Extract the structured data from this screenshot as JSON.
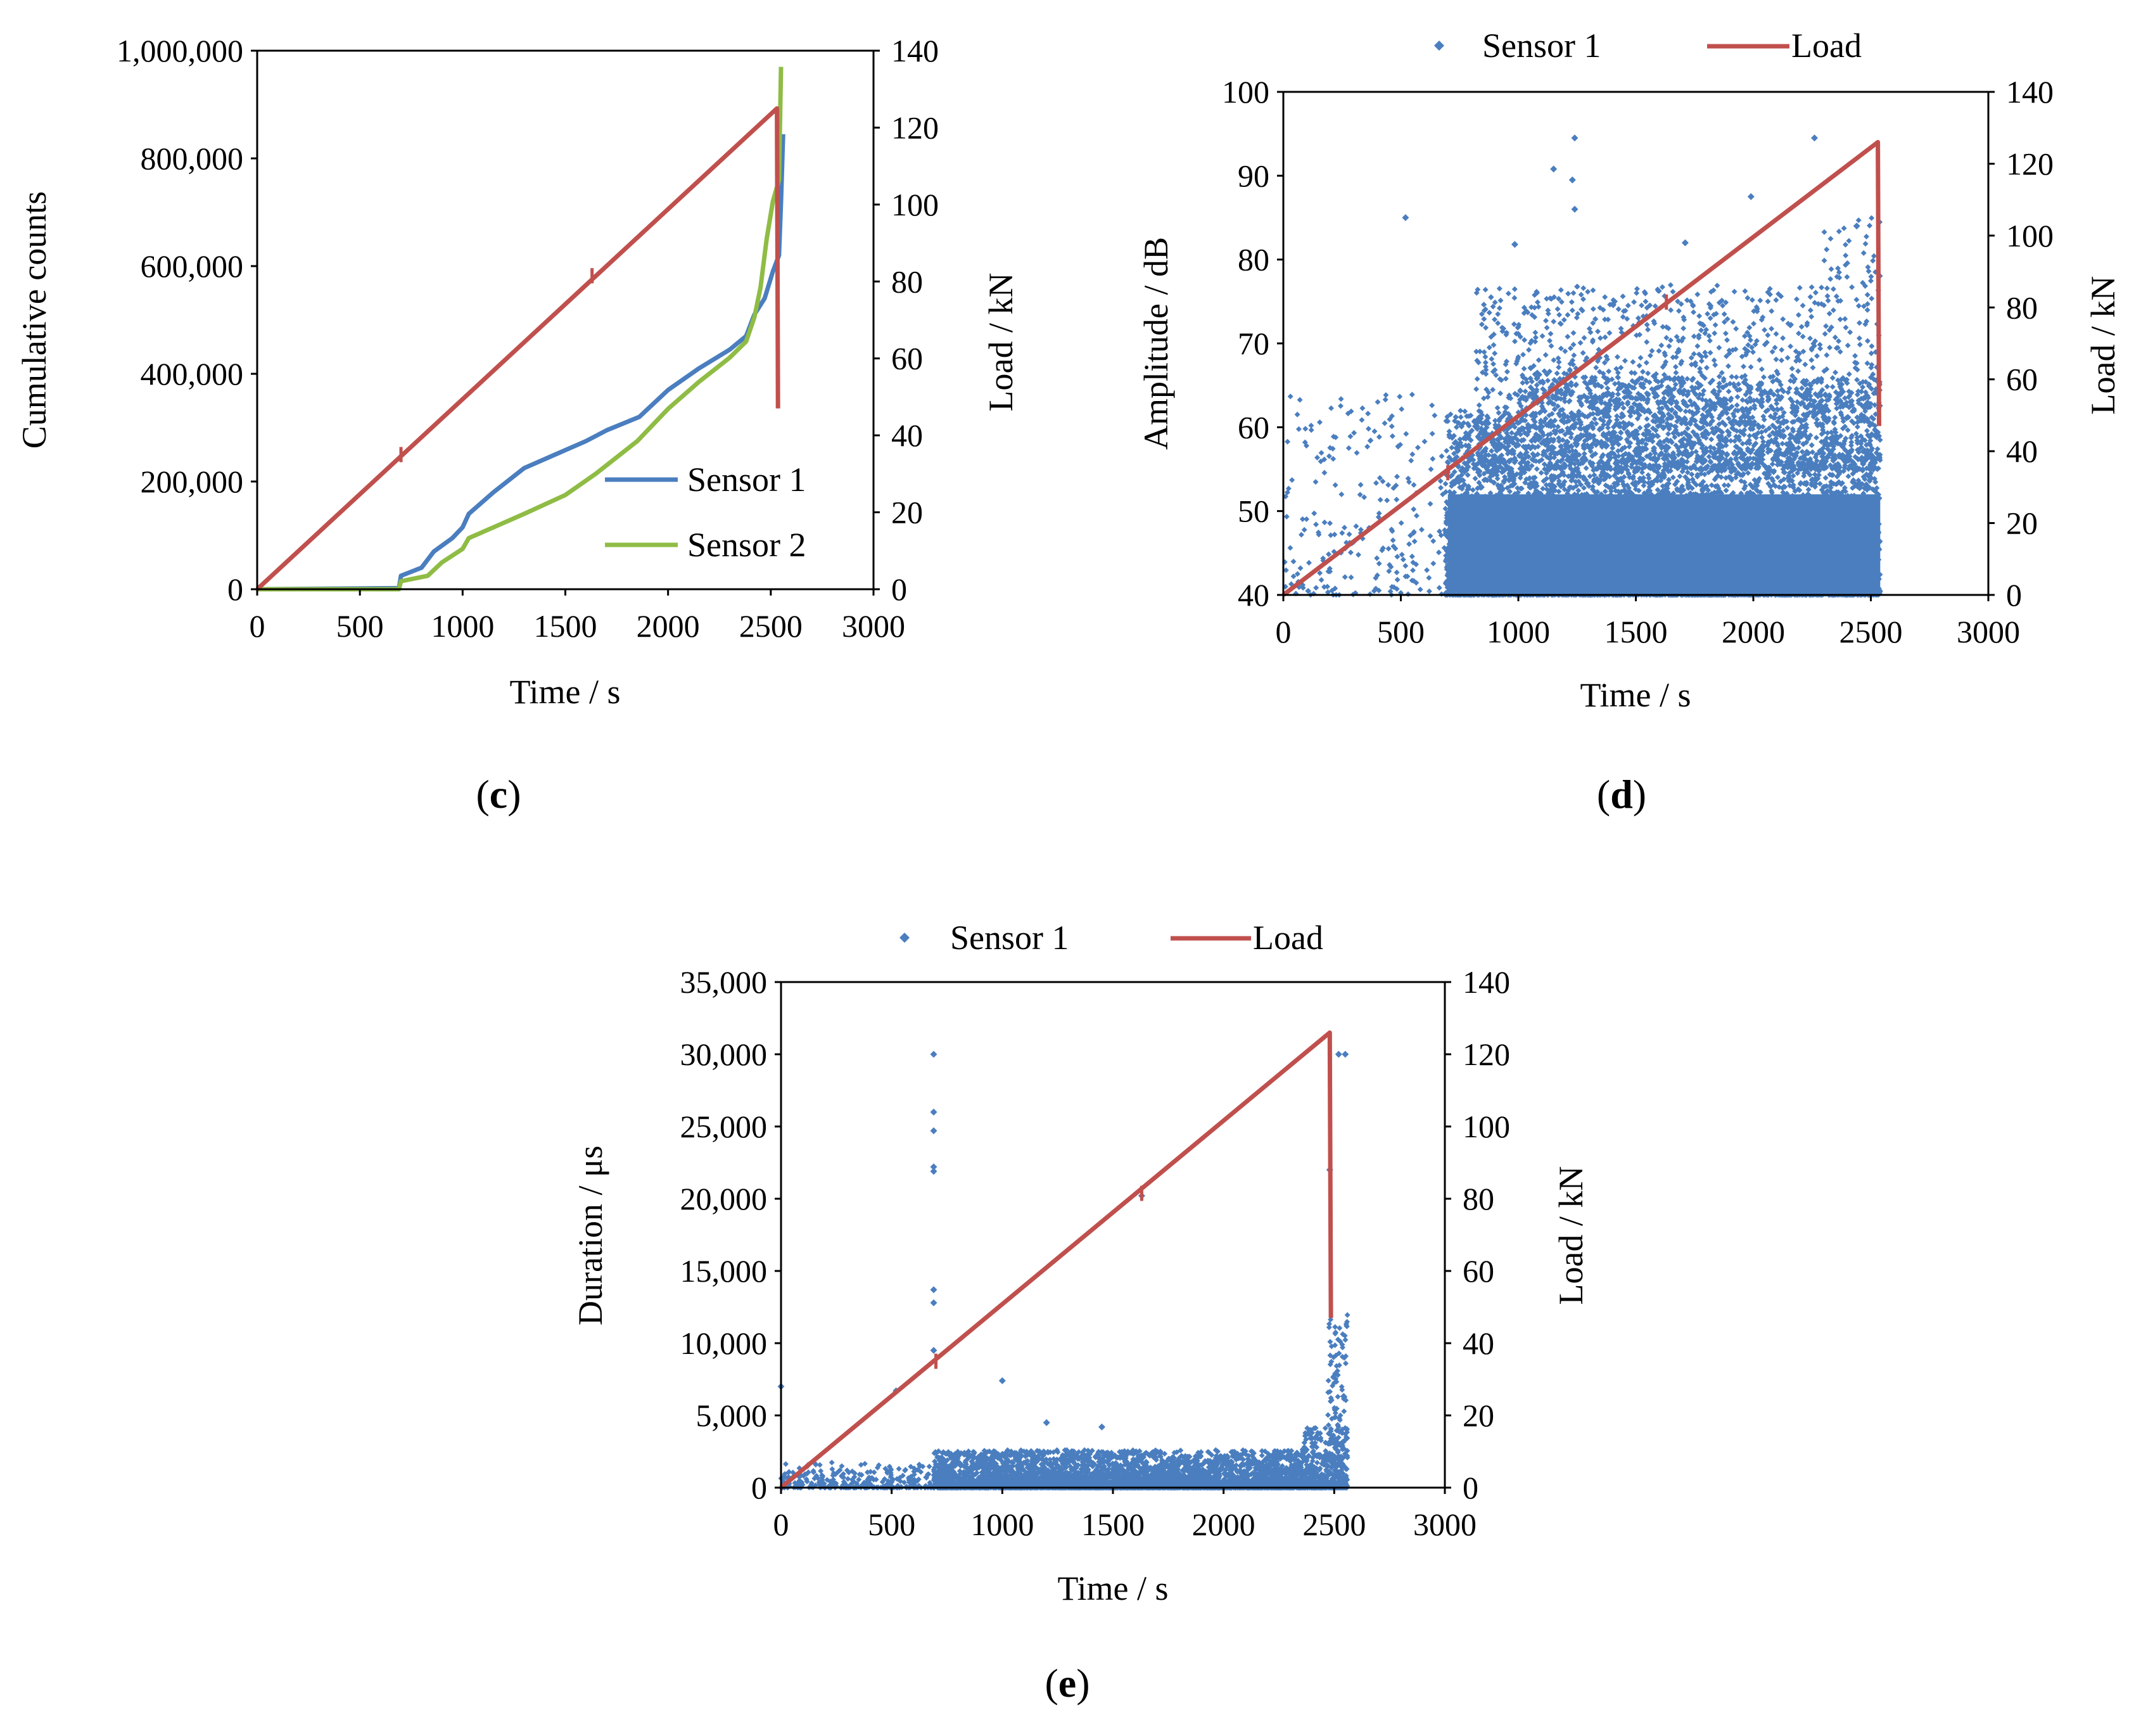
{
  "chart_data": [
    {
      "id": "c",
      "type": "line",
      "caption_letter": "c",
      "xlabel": "Time / s",
      "ylabel": "Cumulative  counts",
      "y2label": "Load / kN",
      "xlim": [
        0,
        3000
      ],
      "ylim": [
        0,
        1000000
      ],
      "y2lim": [
        0,
        140
      ],
      "xticks": [
        "0",
        "500",
        "1000",
        "1500",
        "2000",
        "2500",
        "3000"
      ],
      "yticks": [
        "0",
        "200,000",
        "400,000",
        "600,000",
        "800,000",
        "1,000,000"
      ],
      "y2ticks": [
        "0",
        "20",
        "40",
        "60",
        "80",
        "100",
        "120",
        "140"
      ],
      "legend_position": "bottom-right",
      "series": [
        {
          "name": "Sensor 1",
          "axis": "left",
          "color": "#4a7ebf",
          "points": [
            [
              0,
              0
            ],
            [
              690,
              2000
            ],
            [
              700,
              25000
            ],
            [
              800,
              40000
            ],
            [
              860,
              70000
            ],
            [
              950,
              95000
            ],
            [
              1000,
              115000
            ],
            [
              1030,
              140000
            ],
            [
              1150,
              180000
            ],
            [
              1300,
              225000
            ],
            [
              1450,
              250000
            ],
            [
              1600,
              275000
            ],
            [
              1700,
              295000
            ],
            [
              1860,
              320000
            ],
            [
              2000,
              370000
            ],
            [
              2150,
              410000
            ],
            [
              2300,
              445000
            ],
            [
              2380,
              470000
            ],
            [
              2420,
              510000
            ],
            [
              2470,
              540000
            ],
            [
              2510,
              590000
            ],
            [
              2540,
              620000
            ],
            [
              2550,
              720000
            ],
            [
              2560,
              845000
            ]
          ]
        },
        {
          "name": "Sensor 2",
          "axis": "left",
          "color": "#8fbc45",
          "points": [
            [
              0,
              0
            ],
            [
              690,
              0
            ],
            [
              700,
              15000
            ],
            [
              830,
              25000
            ],
            [
              900,
              50000
            ],
            [
              1000,
              75000
            ],
            [
              1030,
              95000
            ],
            [
              1150,
              115000
            ],
            [
              1300,
              140000
            ],
            [
              1500,
              175000
            ],
            [
              1650,
              215000
            ],
            [
              1850,
              275000
            ],
            [
              2000,
              335000
            ],
            [
              2150,
              385000
            ],
            [
              2300,
              430000
            ],
            [
              2380,
              460000
            ],
            [
              2420,
              505000
            ],
            [
              2450,
              560000
            ],
            [
              2480,
              650000
            ],
            [
              2510,
              720000
            ],
            [
              2540,
              760000
            ],
            [
              2550,
              970000
            ]
          ]
        },
        {
          "name": "Load",
          "axis": "right",
          "color": "#c0504d",
          "points": [
            [
              0,
              0
            ],
            [
              2530,
              125
            ],
            [
              2535,
              47
            ]
          ]
        }
      ],
      "legend": [
        "Sensor 1",
        "Sensor 2"
      ]
    },
    {
      "id": "d",
      "type": "scatter",
      "caption_letter": "d",
      "xlabel": "Time / s",
      "ylabel": "Amplitude / dB",
      "y2label": "Load / kN",
      "xlim": [
        0,
        3000
      ],
      "ylim": [
        40,
        100
      ],
      "y2lim": [
        0,
        140
      ],
      "xticks": [
        "0",
        "500",
        "1000",
        "1500",
        "2000",
        "2500",
        "3000"
      ],
      "yticks": [
        "40",
        "50",
        "60",
        "70",
        "80",
        "90",
        "100"
      ],
      "y2ticks": [
        "0",
        "20",
        "40",
        "60",
        "80",
        "100",
        "120",
        "140"
      ],
      "legend_position": "top",
      "series": [
        {
          "name": "Sensor 1",
          "axis": "left",
          "color": "#4a7ebf",
          "marker": "diamond",
          "notable_points": [
            [
              1240,
              94.5
            ],
            [
              2260,
              94.5
            ],
            [
              1150,
              90.8
            ],
            [
              1230,
              89.5
            ],
            [
              1240,
              86
            ],
            [
              520,
              85
            ],
            [
              985,
              81.8
            ],
            [
              1990,
              87.5
            ],
            [
              1710,
              82
            ],
            [
              2440,
              84
            ]
          ]
        },
        {
          "name": "Load",
          "axis": "right",
          "color": "#c0504d",
          "points": [
            [
              0,
              0
            ],
            [
              2530,
              126
            ],
            [
              2535,
              47
            ]
          ]
        }
      ],
      "legend": [
        "Sensor 1",
        "Load"
      ]
    },
    {
      "id": "e",
      "type": "scatter",
      "caption_letter": "e",
      "xlabel": "Time / s",
      "ylabel": "Duration / μs",
      "y2label": "Load / kN",
      "xlim": [
        0,
        3000
      ],
      "ylim": [
        0,
        35000
      ],
      "y2lim": [
        0,
        140
      ],
      "xticks": [
        "0",
        "500",
        "1000",
        "1500",
        "2000",
        "2500",
        "3000"
      ],
      "yticks": [
        "0",
        "5,000",
        "10,000",
        "15,000",
        "20,000",
        "25,000",
        "30,000",
        "35,000"
      ],
      "y2ticks": [
        "0",
        "20",
        "40",
        "60",
        "80",
        "100",
        "120",
        "140"
      ],
      "legend_position": "top",
      "series": [
        {
          "name": "Sensor 1",
          "axis": "left",
          "color": "#4a7ebf",
          "marker": "diamond",
          "notable_points": [
            [
              690,
              30000
            ],
            [
              690,
              26000
            ],
            [
              690,
              24700
            ],
            [
              690,
              22200
            ],
            [
              690,
              21900
            ],
            [
              690,
              13700
            ],
            [
              690,
              12800
            ],
            [
              690,
              9500
            ],
            [
              2520,
              30000
            ],
            [
              2550,
              30000
            ],
            [
              2480,
              22000
            ],
            [
              1630,
              20200
            ],
            [
              1000,
              7400
            ],
            [
              1200,
              4500
            ],
            [
              1450,
              4200
            ],
            [
              0,
              7000
            ],
            [
              520,
              6700
            ]
          ]
        },
        {
          "name": "Load",
          "axis": "right",
          "color": "#c0504d",
          "points": [
            [
              0,
              0
            ],
            [
              2480,
              126
            ],
            [
              2485,
              47
            ]
          ]
        }
      ],
      "legend": [
        "Sensor 1",
        "Load"
      ]
    }
  ]
}
